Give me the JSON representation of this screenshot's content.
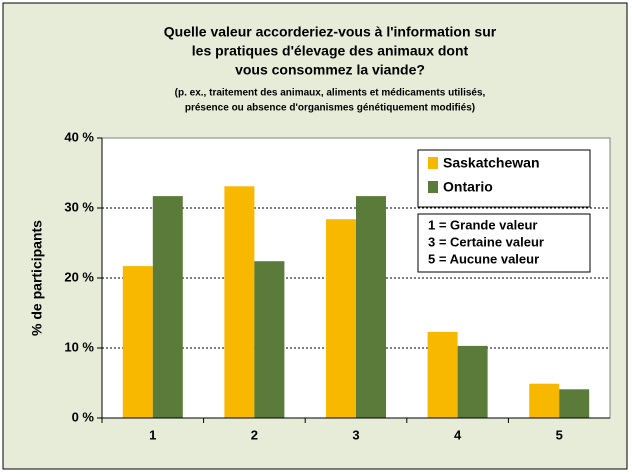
{
  "chart_data": {
    "type": "bar",
    "title": [
      "Quelle valeur accorderiez-vous à l'information sur",
      "les pratiques d'élevage des animaux dont",
      "vous consommez la viande?"
    ],
    "subtitle": [
      "(p. ex., traitement des animaux, aliments et médicaments utilisés,",
      "présence ou absence d'organismes génétiquement modifiés)"
    ],
    "y_label": "% de participants",
    "categories": [
      "1",
      "2",
      "3",
      "4",
      "5"
    ],
    "series": [
      {
        "name": "Saskatchewan",
        "color": "#f8b800",
        "values": [
          21.7,
          33.1,
          28.4,
          12.3,
          4.9
        ]
      },
      {
        "name": "Ontario",
        "color": "#5b7b3a",
        "values": [
          31.7,
          22.4,
          31.7,
          10.3,
          4.1
        ]
      }
    ],
    "annotations": [
      "1 = Grande valeur",
      "3 = Certaine valeur",
      "5 = Aucune valeur"
    ],
    "ylim": [
      0,
      40
    ],
    "yticks": [
      {
        "value": 0,
        "label": "0 %"
      },
      {
        "value": 10,
        "label": "10 %"
      },
      {
        "value": 20,
        "label": "20 %"
      },
      {
        "value": 30,
        "label": "30 %"
      },
      {
        "value": 40,
        "label": "40 %"
      }
    ],
    "grid": true
  }
}
